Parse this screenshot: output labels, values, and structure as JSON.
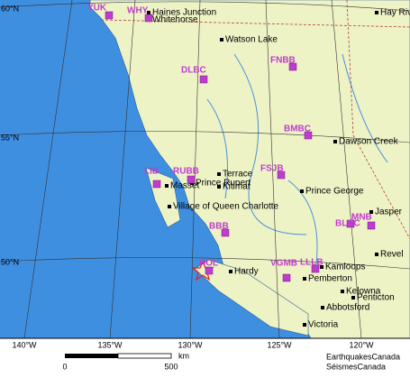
{
  "map": {
    "lat_labels": [
      "60°N",
      "55°N",
      "50°N"
    ],
    "lon_labels": [
      "140°W",
      "135°W",
      "130°W",
      "125°W",
      "120°W"
    ],
    "stations": [
      "YUK",
      "WHY",
      "DLBC",
      "FNBB",
      "BMBC",
      "LIB",
      "RUBB",
      "FSJB",
      "BBB",
      "BLBC",
      "MNB",
      "HOL",
      "LLLB",
      "VGMB"
    ],
    "cities": [
      "Haines Junction",
      "Whitehorse",
      "Hay River",
      "Watson Lake",
      "Dawson Creek",
      "Terrace",
      "Prince Rupert",
      "Kitimat",
      "Masset",
      "Village of Queen Charlotte",
      "Prince George",
      "Jasper",
      "Revel",
      "Kamloops",
      "Pemberton",
      "Kelowna",
      "Penticton",
      "Hardy",
      "Abbotsford",
      "Victoria"
    ],
    "scale": {
      "start": "0",
      "end": "500",
      "unit": "km"
    },
    "credits": [
      "EarthquakesCanada",
      "SéismesCanada"
    ]
  }
}
